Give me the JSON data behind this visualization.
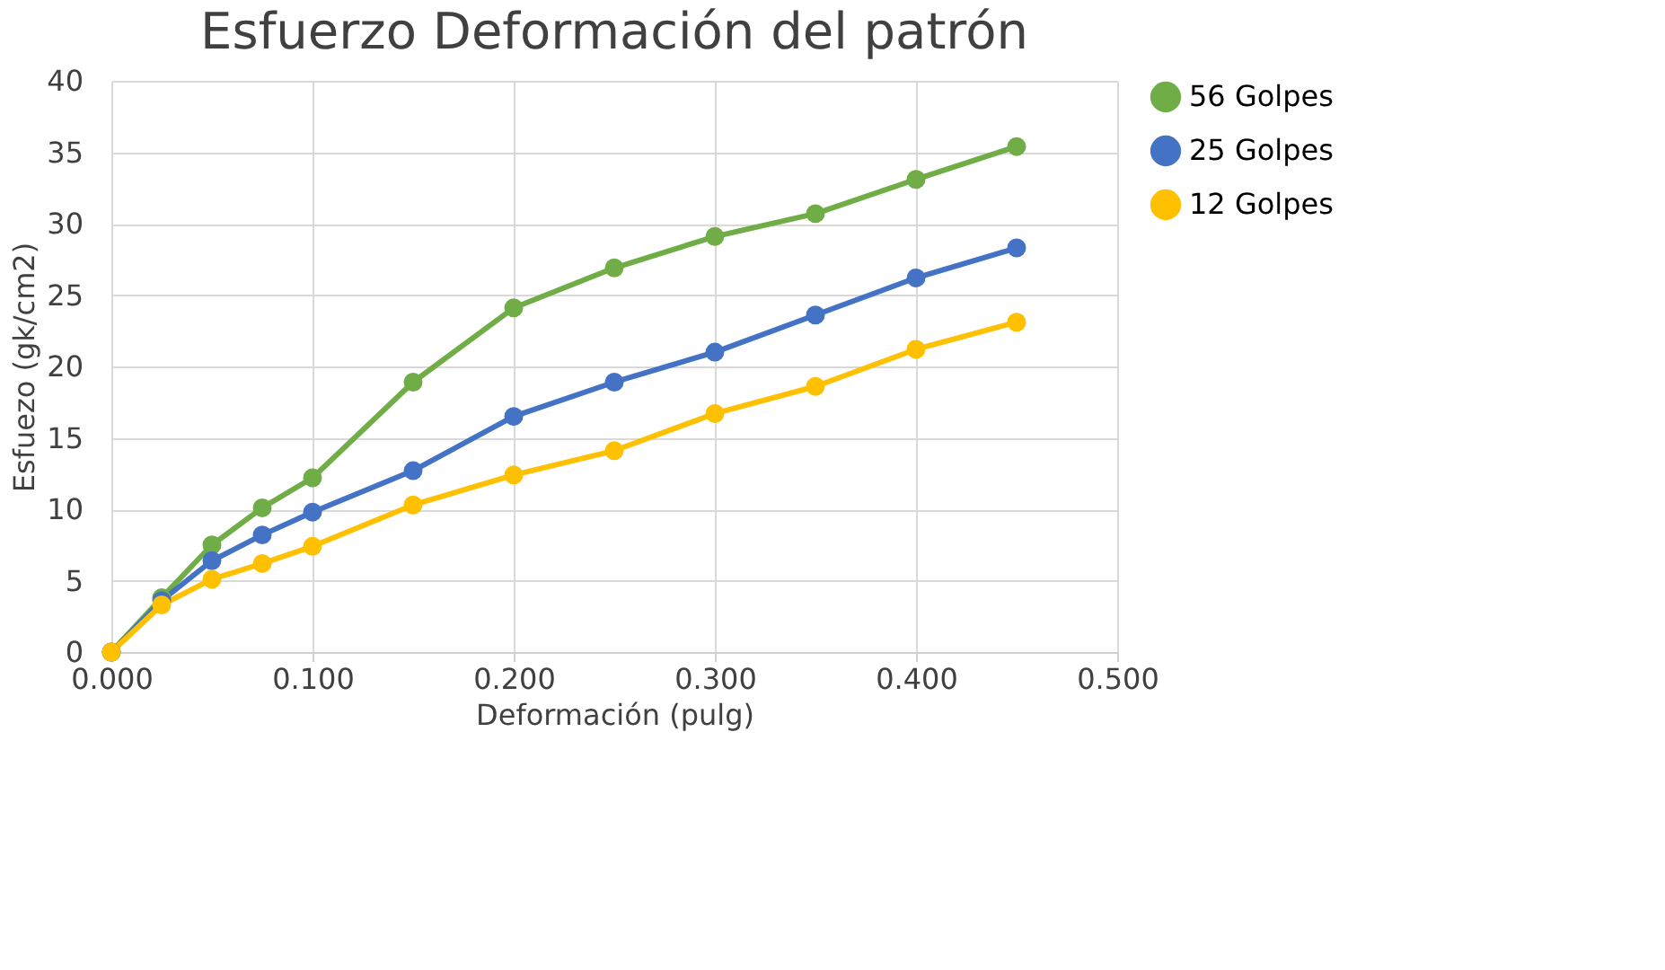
{
  "chart_data": {
    "type": "line",
    "title": "Esfuerzo Deformación del patrón",
    "xlabel": "Deformación (pulg)",
    "ylabel": "Esfuezo (gk/cm2)",
    "x": [
      0,
      0.025,
      0.05,
      0.075,
      0.1,
      0.15,
      0.2,
      0.25,
      0.3,
      0.35,
      0.4,
      0.45
    ],
    "series": [
      {
        "name": "56 Golpes",
        "color": "#70ad47",
        "values": [
          0,
          3.8,
          7.5,
          10.1,
          12.2,
          18.9,
          24.1,
          26.9,
          29.1,
          30.7,
          33.1,
          35.4
        ]
      },
      {
        "name": "25 Golpes",
        "color": "#4472c4",
        "values": [
          0,
          3.6,
          6.4,
          8.2,
          9.8,
          12.7,
          16.5,
          18.9,
          21.0,
          23.6,
          26.2,
          28.3
        ]
      },
      {
        "name": "12 Golpes",
        "color": "#ffc000",
        "values": [
          0,
          3.3,
          5.1,
          6.2,
          7.4,
          10.3,
          12.4,
          14.1,
          16.7,
          18.6,
          21.2,
          23.1
        ]
      }
    ],
    "xlim": [
      0,
      0.5
    ],
    "xticks": [
      {
        "value": 0,
        "label": "0.000"
      },
      {
        "value": 0.1,
        "label": "0.100"
      },
      {
        "value": 0.2,
        "label": "0.200"
      },
      {
        "value": 0.3,
        "label": "0.300"
      },
      {
        "value": 0.4,
        "label": "0.400"
      },
      {
        "value": 0.5,
        "label": "0.500"
      }
    ],
    "ylim": [
      0,
      40
    ],
    "yticks": [
      0,
      5,
      10,
      15,
      20,
      25,
      30,
      35,
      40
    ],
    "grid": true,
    "legend": "right",
    "marker": "circle",
    "line_style": "solid"
  }
}
